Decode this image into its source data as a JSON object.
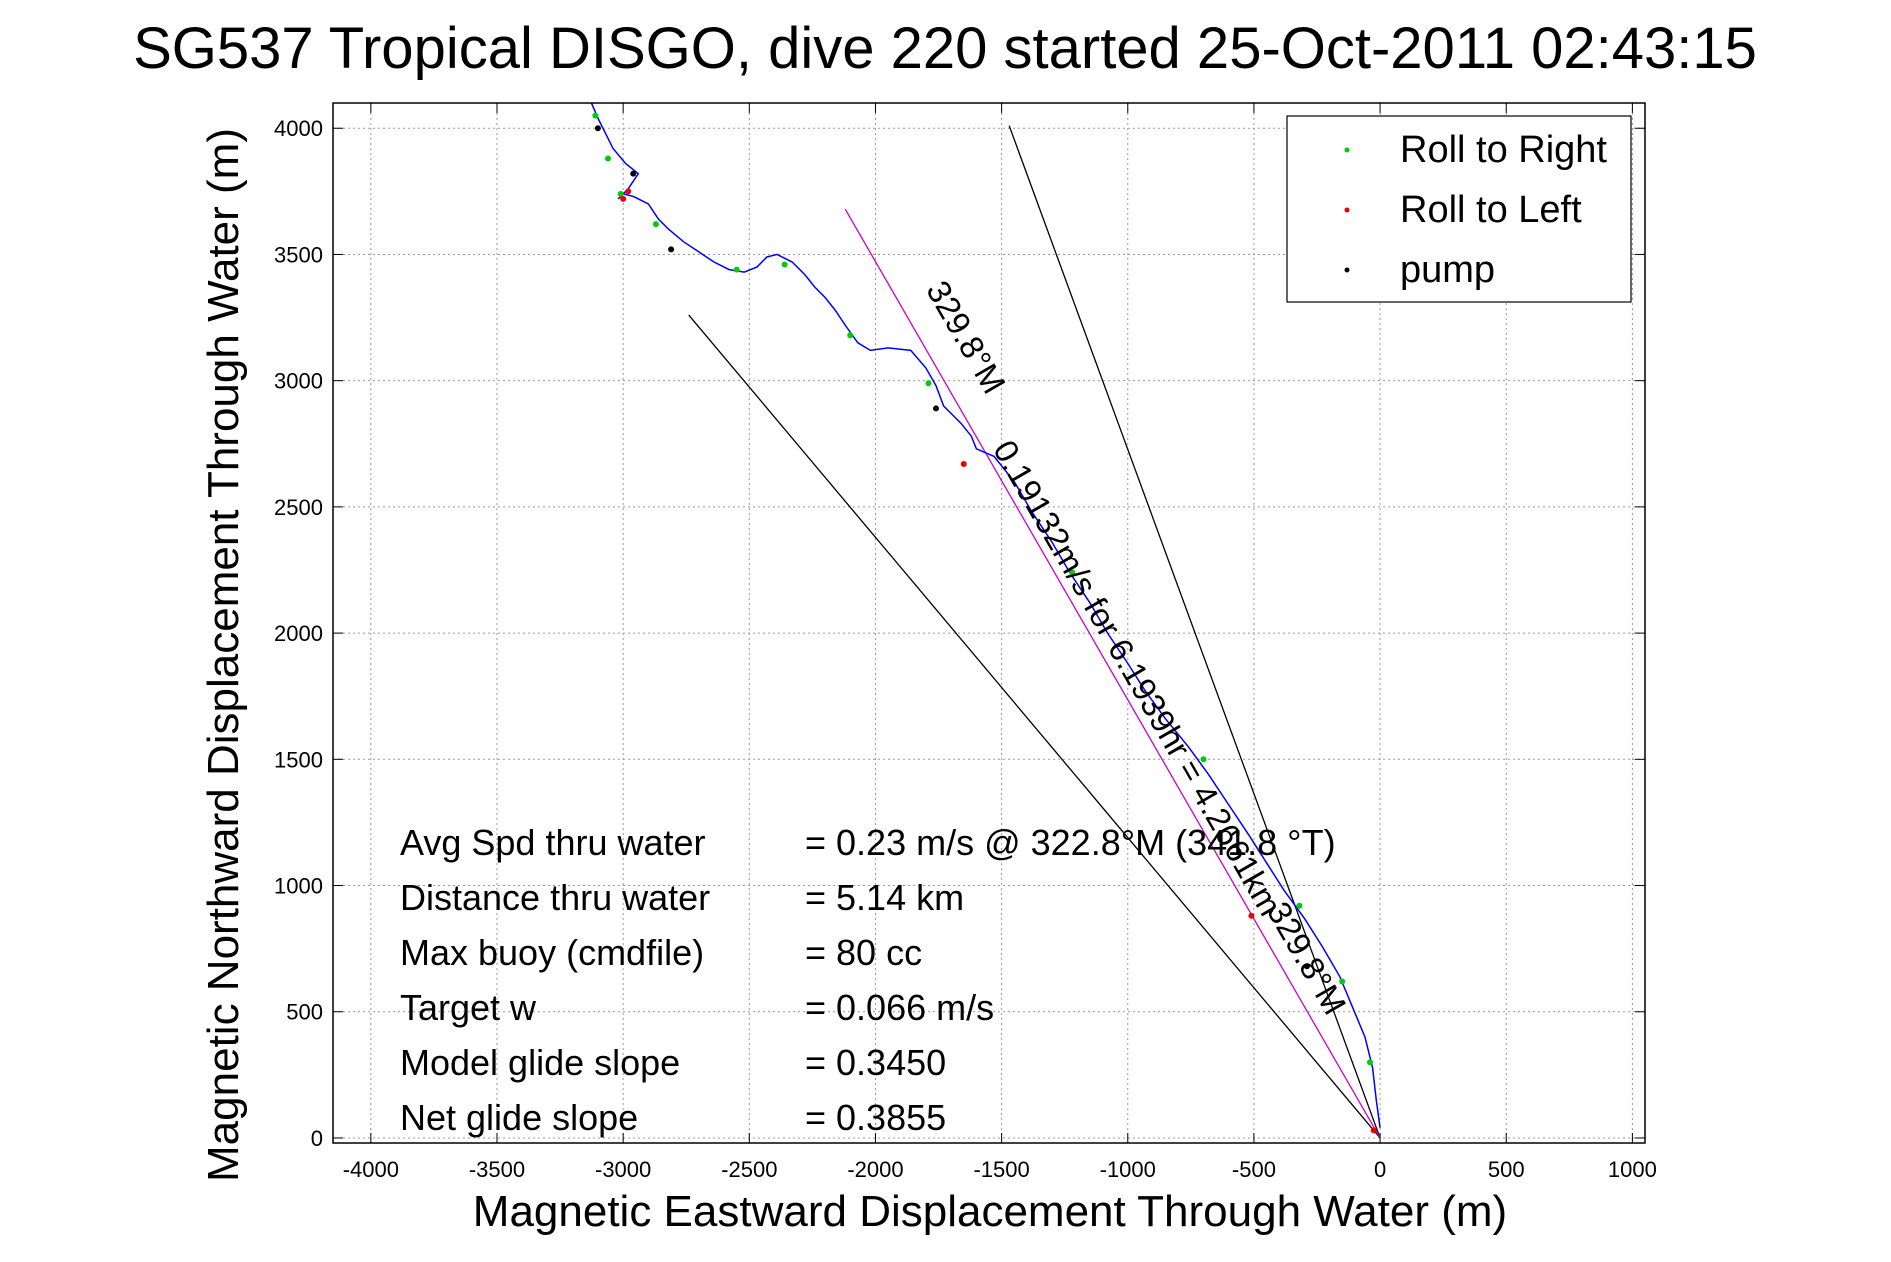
{
  "chart_data": {
    "type": "scatter",
    "title": "SG537 Tropical DISGO, dive 220 started 25-Oct-2011 02:43:15",
    "xlabel": "Magnetic Eastward Displacement Through Water (m)",
    "ylabel": "Magnetic Northward Displacement Through Water (m)",
    "xlim": [
      -4150,
      1050
    ],
    "ylim": [
      -20,
      4100
    ],
    "xticks": [
      -4000,
      -3500,
      -3000,
      -2500,
      -2000,
      -1500,
      -1000,
      -500,
      0,
      500,
      1000
    ],
    "yticks": [
      0,
      500,
      1000,
      1500,
      2000,
      2500,
      3000,
      3500,
      4000
    ],
    "grid": true,
    "legend_placement": "top-right",
    "legend": [
      {
        "label": "Roll to Right",
        "color": "#00cc00"
      },
      {
        "label": "Roll to Left",
        "color": "#ee0000"
      },
      {
        "label": "pump",
        "color": "#000000"
      }
    ],
    "series": [
      {
        "name": "track",
        "color": "#0000ff",
        "x": [
          0,
          -15,
          -30,
          -60,
          -110,
          -160,
          -230,
          -300,
          -380,
          -450,
          -520,
          -600,
          -680,
          -760,
          -850,
          -930,
          -1000,
          -1080,
          -1150,
          -1230,
          -1300,
          -1380,
          -1450,
          -1530,
          -1600,
          -1620,
          -1660,
          -1700,
          -1730,
          -1760,
          -1800,
          -1860,
          -1950,
          -2020,
          -2070,
          -2120,
          -2160,
          -2200,
          -2240,
          -2280,
          -2330,
          -2390,
          -2430,
          -2470,
          -2520,
          -2580,
          -2640,
          -2700,
          -2760,
          -2820,
          -2860,
          -2900,
          -2960,
          -3000,
          -3020,
          -2980,
          -2940,
          -2990,
          -3040,
          -3070,
          -3100,
          -3130
        ],
        "y": [
          40,
          150,
          280,
          400,
          520,
          640,
          760,
          870,
          980,
          1090,
          1200,
          1320,
          1440,
          1550,
          1660,
          1770,
          1880,
          2000,
          2120,
          2240,
          2360,
          2480,
          2600,
          2700,
          2730,
          2780,
          2830,
          2870,
          2900,
          2980,
          3050,
          3120,
          3130,
          3120,
          3150,
          3220,
          3280,
          3330,
          3370,
          3420,
          3470,
          3500,
          3490,
          3450,
          3430,
          3440,
          3470,
          3510,
          3550,
          3600,
          3640,
          3700,
          3730,
          3740,
          3720,
          3760,
          3820,
          3860,
          3920,
          3980,
          4040,
          4110
        ]
      },
      {
        "name": "Roll to Right",
        "color": "#00cc00",
        "x": [
          -40,
          -150,
          -320,
          -700,
          -1220,
          -1790,
          -2100,
          -2360,
          -2550,
          -2870,
          -3010,
          -3060,
          -3110
        ],
        "y": [
          300,
          620,
          920,
          1500,
          2240,
          2990,
          3180,
          3460,
          3440,
          3620,
          3740,
          3880,
          4050
        ]
      },
      {
        "name": "Roll to Left",
        "color": "#ee0000",
        "x": [
          -25,
          -510,
          -1650,
          -2980,
          -3000
        ],
        "y": [
          30,
          880,
          2670,
          3750,
          3720
        ]
      },
      {
        "name": "pump",
        "color": "#000000",
        "x": [
          -290,
          -1760,
          -2810,
          -2960,
          -3100
        ],
        "y": [
          680,
          2890,
          3520,
          3820,
          4000
        ]
      }
    ],
    "reference_lines": [
      {
        "color": "#000000",
        "x": [
          0,
          -1470
        ],
        "y": [
          0,
          4010
        ]
      },
      {
        "color": "#000000",
        "x": [
          0,
          -2740
        ],
        "y": [
          0,
          3260
        ]
      },
      {
        "color": "#cc00cc",
        "x": [
          0,
          -2120
        ],
        "y": [
          0,
          3680
        ]
      }
    ],
    "annotations": [
      {
        "text": "329.8°M",
        "x": -1680,
        "y": 3150,
        "angle_deg": -120
      },
      {
        "text": "0.19132m/s for 6.1939hr = 4.2661km",
        "x": -1000,
        "y": 1800,
        "angle_deg": -120
      },
      {
        "text": "329.8°M",
        "x": -330,
        "y": 690,
        "angle_deg": -120
      }
    ],
    "stats": [
      {
        "label": "Avg Spd thru water",
        "value": "=  0.23 m/s @ 322.8°M (341.8 °T)"
      },
      {
        "label": "Distance thru water",
        "value": "=  5.14 km"
      },
      {
        "label": "Max buoy (cmdfile)",
        "value": "= 80 cc"
      },
      {
        "label": "Target w",
        "value": "= 0.066 m/s"
      },
      {
        "label": "Model glide slope",
        "value": "= 0.3450"
      },
      {
        "label": "Net glide slope",
        "value": "= 0.3855"
      }
    ]
  }
}
